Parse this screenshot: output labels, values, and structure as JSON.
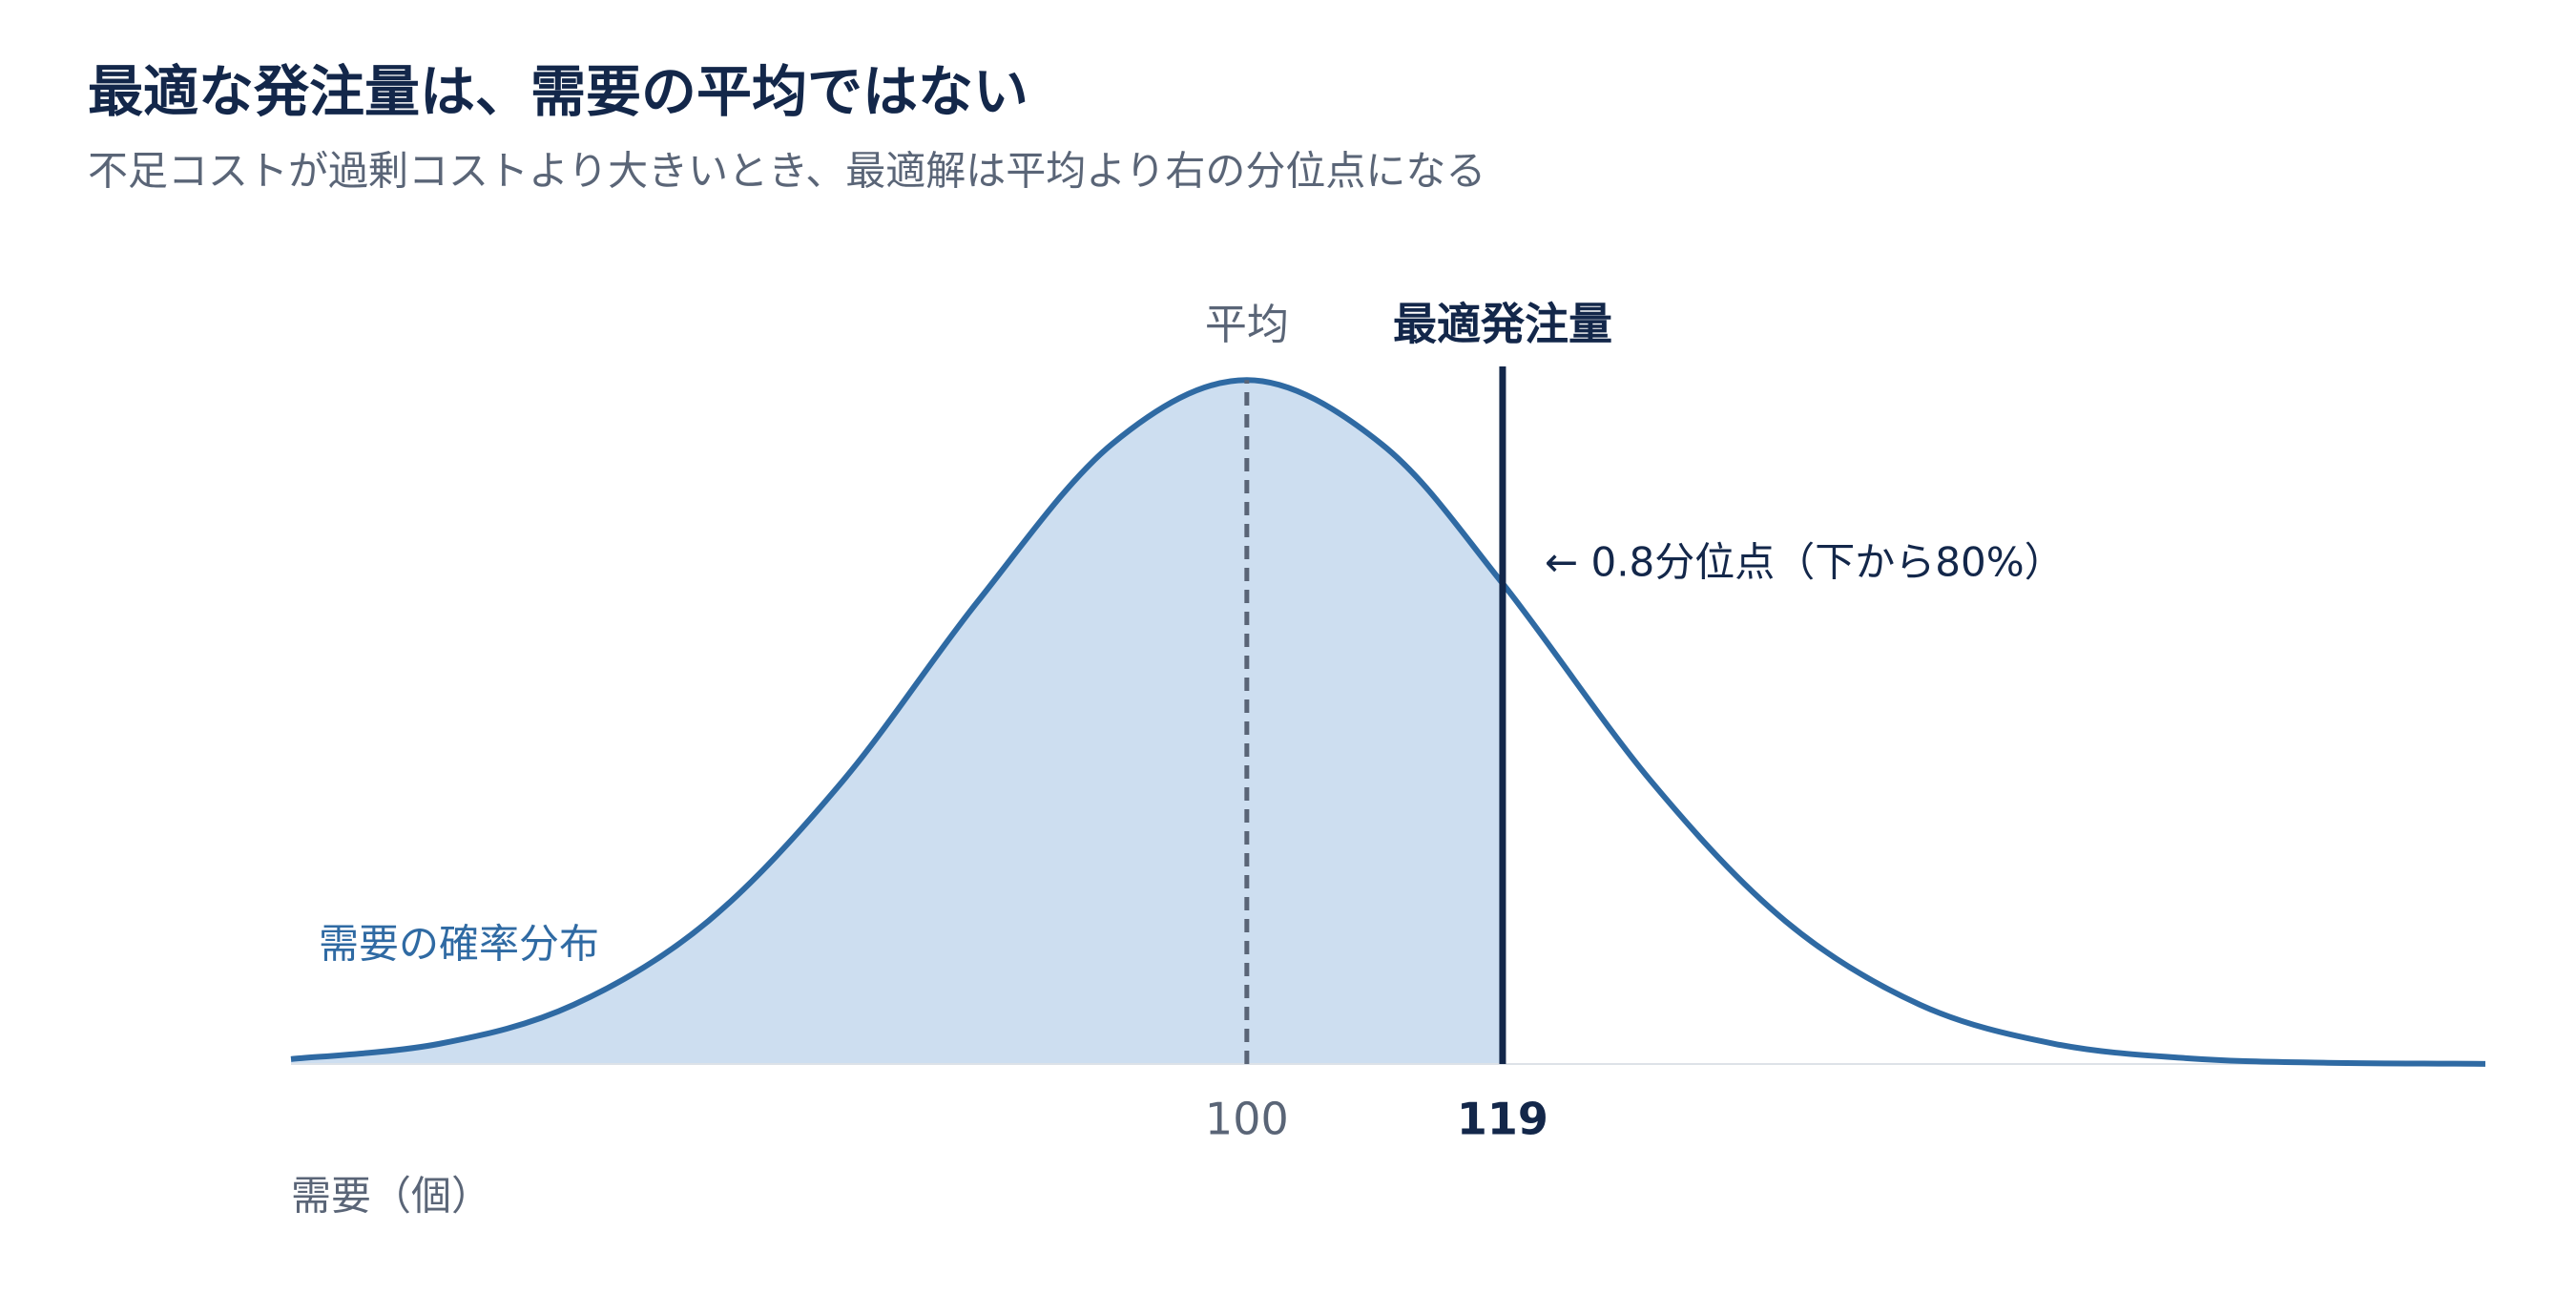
{
  "chart_data": {
    "type": "area",
    "title": "最適な発注量は、需要の平均ではない",
    "subtitle": "不足コストが過剰コストより大きいとき、最適解は平均より右の分位点になる",
    "x_label": "需要（個）",
    "series_label": "需要の確率分布",
    "mean_label": "平均",
    "optimal_label": "最適発注量",
    "quantile_annotation": "← 0.8分位点（下から80%）",
    "x": [
      29,
      40,
      50,
      60,
      70,
      80,
      90,
      100,
      110,
      119,
      130,
      140,
      150,
      160,
      170,
      180,
      192
    ],
    "values": [
      0.000127,
      0.00052,
      0.00153,
      0.00369,
      0.00731,
      0.01193,
      0.016,
      0.01765,
      0.016,
      0.0124,
      0.00731,
      0.00369,
      0.00153,
      0.00052,
      0.000146,
      3.36e-05,
      4.4e-06
    ],
    "shade_to_index": 9,
    "xlim": [
      29,
      192
    ],
    "ylim": [
      0,
      0.018
    ],
    "xticks": [
      100,
      119
    ],
    "color": "#2f6aa3",
    "fill_color": "#cddef0",
    "optimal_color": "#13274a",
    "mean_color": "#5a6577"
  }
}
